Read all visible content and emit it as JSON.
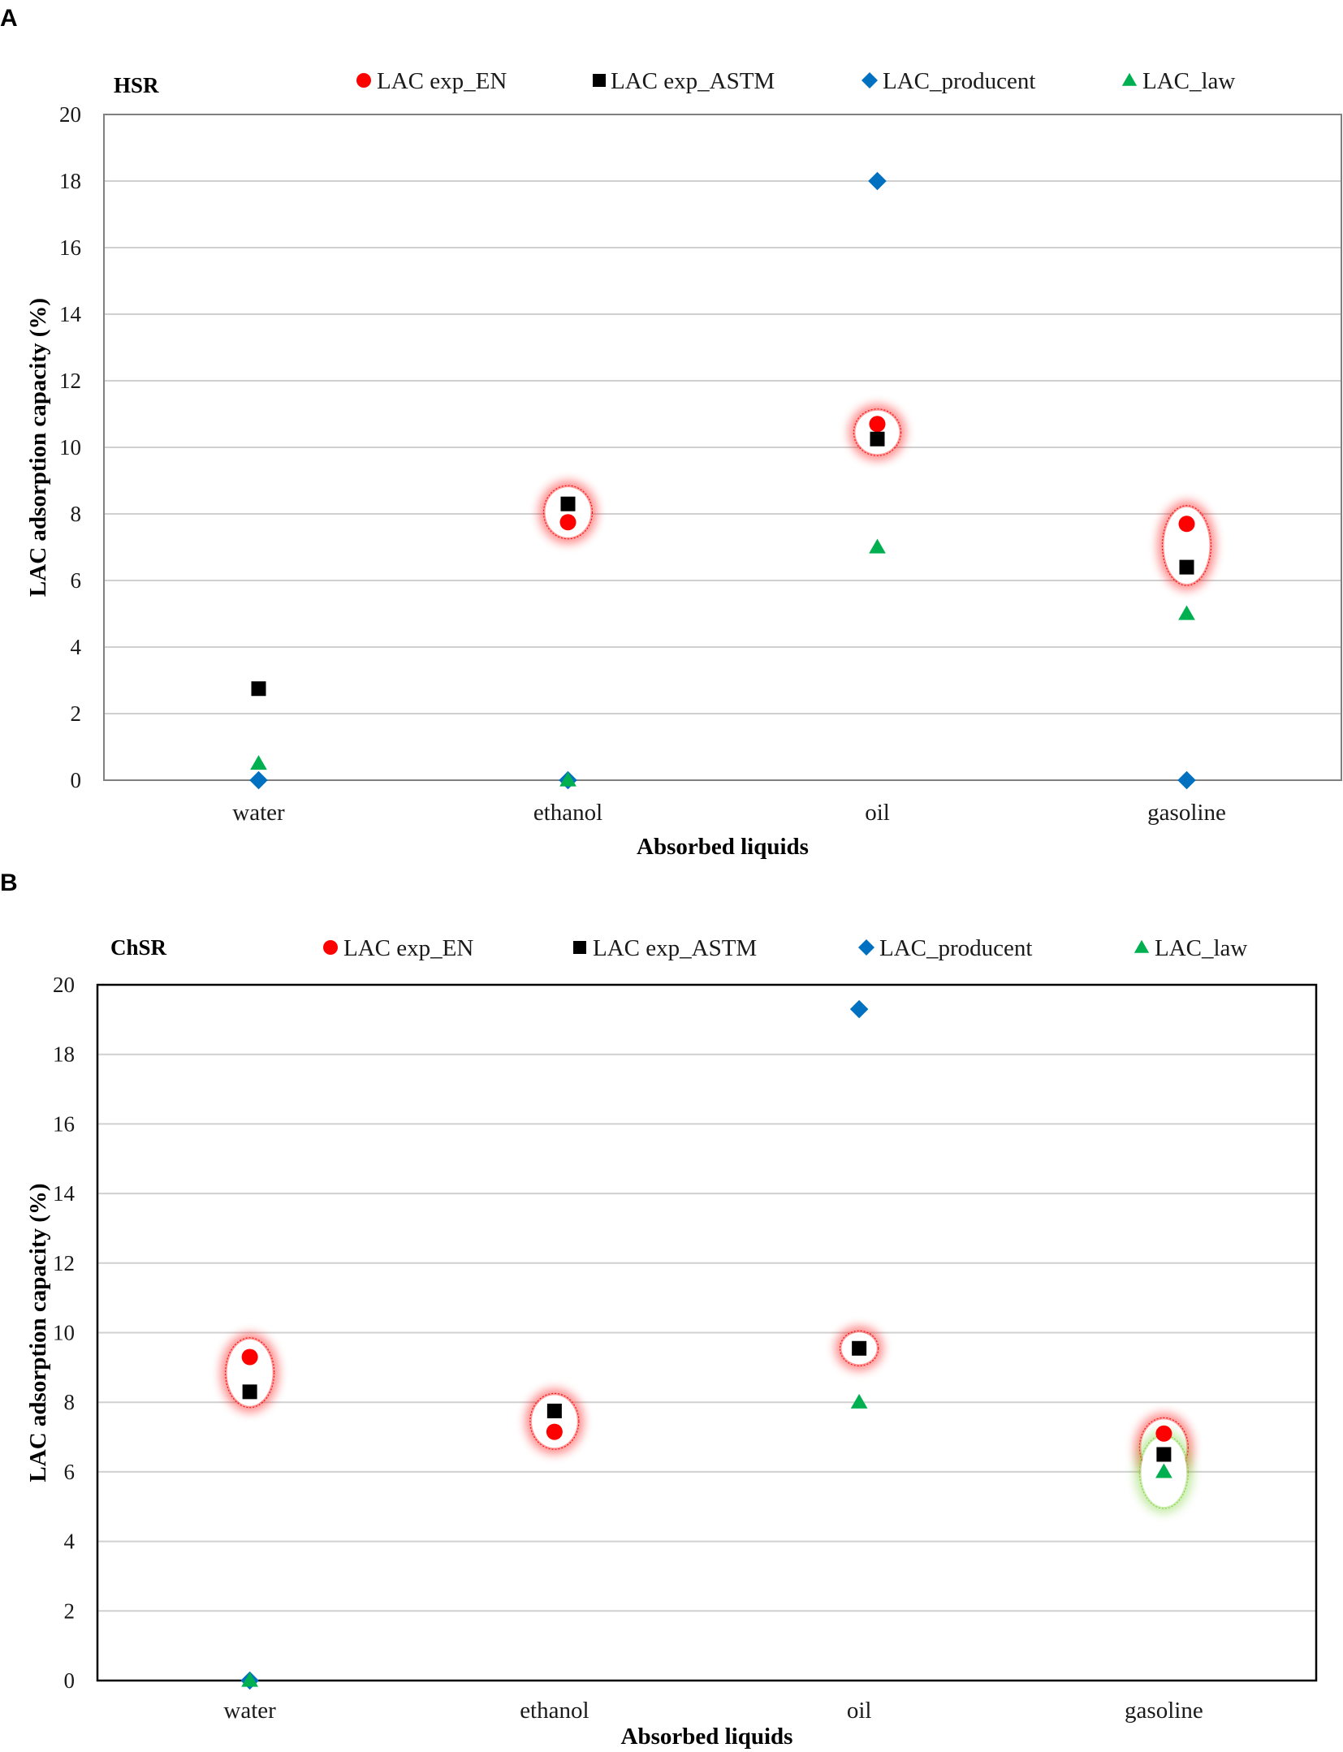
{
  "chart_data": [
    {
      "type": "scatter",
      "panel_label": "A",
      "title": "HSR",
      "xlabel": "Absorbed liquids",
      "ylabel": "LAC adsorption capacity (%)",
      "ylim": [
        0,
        20
      ],
      "yticks": [
        "0",
        "2",
        "4",
        "6",
        "8",
        "10",
        "12",
        "14",
        "16",
        "18",
        "20"
      ],
      "categories": [
        "water",
        "ethanol",
        "oil",
        "gasoline"
      ],
      "series": [
        {
          "name": "LAC exp_EN",
          "marker": "circle",
          "color": "#ff0000",
          "values": [
            null,
            7.75,
            10.7,
            7.7
          ]
        },
        {
          "name": "LAC exp_ASTM",
          "marker": "square",
          "color": "#000000",
          "values": [
            2.75,
            8.3,
            10.25,
            6.4
          ]
        },
        {
          "name": "LAC_producent",
          "marker": "diamond",
          "color": "#0070c0",
          "values": [
            0.0,
            0.0,
            18.0,
            0.0
          ]
        },
        {
          "name": "LAC_law",
          "marker": "triangle",
          "color": "#00b050",
          "values": [
            0.5,
            0.0,
            7.0,
            5.0
          ]
        }
      ],
      "highlights": [
        {
          "category": "ethanol",
          "from": 7.2,
          "to": 8.9,
          "color": "#ff0000"
        },
        {
          "category": "oil",
          "from": 9.7,
          "to": 11.2,
          "color": "#ff0000"
        },
        {
          "category": "gasoline",
          "from": 5.8,
          "to": 8.3,
          "color": "#ff0000"
        }
      ]
    },
    {
      "type": "scatter",
      "panel_label": "B",
      "title": "ChSR",
      "xlabel": "Absorbed liquids",
      "ylabel": "LAC adsorption capacity (%)",
      "ylim": [
        0,
        20
      ],
      "yticks": [
        "0",
        "2",
        "4",
        "6",
        "8",
        "10",
        "12",
        "14",
        "16",
        "18",
        "20"
      ],
      "categories": [
        "water",
        "ethanol",
        "oil",
        "gasoline"
      ],
      "series": [
        {
          "name": "LAC exp_EN",
          "marker": "circle",
          "color": "#ff0000",
          "values": [
            9.3,
            7.15,
            null,
            7.1
          ]
        },
        {
          "name": "LAC exp_ASTM",
          "marker": "square",
          "color": "#000000",
          "values": [
            8.3,
            7.75,
            9.55,
            6.5
          ]
        },
        {
          "name": "LAC_producent",
          "marker": "diamond",
          "color": "#0070c0",
          "values": [
            0.0,
            null,
            19.3,
            null
          ]
        },
        {
          "name": "LAC_law",
          "marker": "triangle",
          "color": "#00b050",
          "values": [
            0.0,
            null,
            8.0,
            6.0
          ]
        }
      ],
      "highlights": [
        {
          "category": "water",
          "from": 7.8,
          "to": 9.9,
          "color": "#ff0000"
        },
        {
          "category": "ethanol",
          "from": 6.6,
          "to": 8.3,
          "color": "#ff0000"
        },
        {
          "category": "oil",
          "from": 9.0,
          "to": 10.1,
          "color": "#ff0000"
        },
        {
          "category": "gasoline",
          "from": 5.8,
          "to": 7.6,
          "color": "#ff0000"
        },
        {
          "category": "gasoline",
          "from": 4.9,
          "to": 7.1,
          "color": "#7fd13b"
        }
      ]
    }
  ]
}
